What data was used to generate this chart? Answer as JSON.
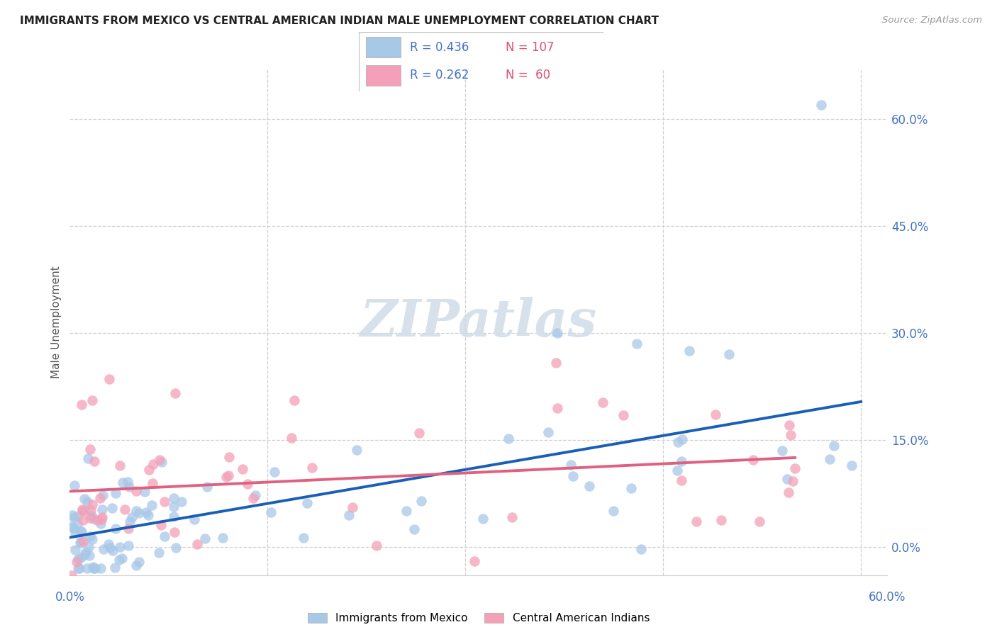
{
  "title": "IMMIGRANTS FROM MEXICO VS CENTRAL AMERICAN INDIAN MALE UNEMPLOYMENT CORRELATION CHART",
  "source": "Source: ZipAtlas.com",
  "ylabel": "Male Unemployment",
  "legend_label1": "Immigrants from Mexico",
  "legend_label2": "Central American Indians",
  "blue_color": "#a8c8e8",
  "blue_line_color": "#1a5eb8",
  "pink_color": "#f4a0b8",
  "pink_line_color": "#e06080",
  "watermark_color": "#d0dce8",
  "ytick_values": [
    0.0,
    0.15,
    0.3,
    0.45,
    0.6
  ],
  "ytick_labels": [
    "0.0%",
    "15.0%",
    "30.0%",
    "45.0%",
    "60.0%"
  ],
  "xtick_values": [
    0.0,
    0.15,
    0.3,
    0.45,
    0.6
  ],
  "xlim": [
    0.0,
    0.62
  ],
  "ylim": [
    -0.04,
    0.67
  ],
  "legend_r1": "R = 0.436",
  "legend_n1": "N = 107",
  "legend_r2": "R = 0.262",
  "legend_n2": "N =  60",
  "blue_scatter_color": "#a8c8e8",
  "pink_scatter_color": "#f4a0b8",
  "grid_color": "#d0d0d0",
  "title_color": "#222222",
  "source_color": "#999999",
  "axis_label_color": "#555555",
  "right_tick_color": "#4472c4"
}
